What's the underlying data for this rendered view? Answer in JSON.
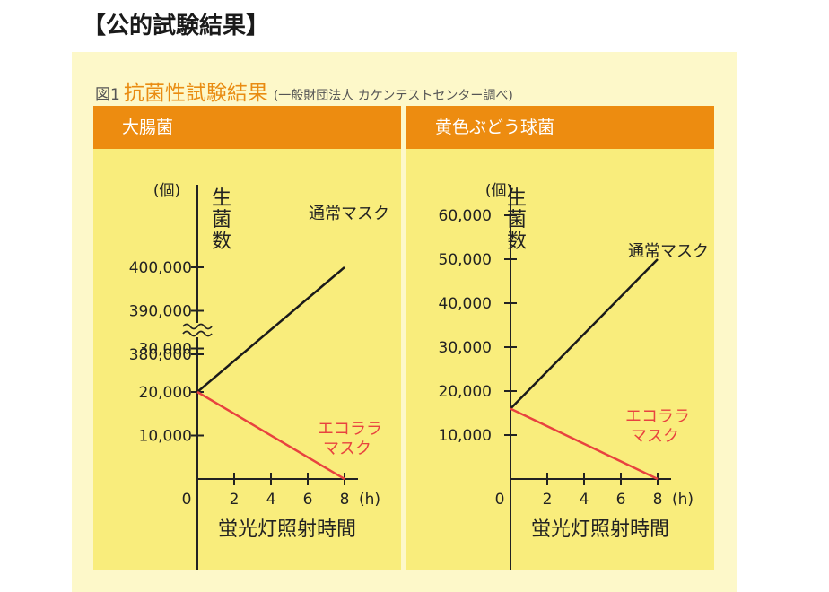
{
  "heading": "【公的試験結果】",
  "figure": {
    "number": "図1",
    "title": "抗菌性試験結果",
    "source": "(一般財団法人 カケンテストセンター調べ)"
  },
  "colors": {
    "header": "#ed8c10",
    "plot_bg": "#f9ed7c",
    "normal_line": "#1a1a1a",
    "eco_line": "#e8423f",
    "eco_text": "#e8423f"
  },
  "chart_data": [
    {
      "type": "line",
      "title": "大腸菌",
      "ylabel": "生菌数",
      "yunit": "(個)",
      "xlabel": "蛍光灯照射時間",
      "xunit": "(h)",
      "x_ticks": [
        "0",
        "2",
        "4",
        "6",
        "8"
      ],
      "y_ticks": [
        "10,000",
        "20,000",
        "30,000",
        "380,000",
        "390,000",
        "400,000"
      ],
      "y_break": true,
      "series": [
        {
          "name": "通常マスク",
          "x": [
            0,
            8
          ],
          "y": [
            20000,
            400000
          ]
        },
        {
          "name": "エコララ\nマスク",
          "x": [
            0,
            8
          ],
          "y": [
            20000,
            0
          ]
        }
      ]
    },
    {
      "type": "line",
      "title": "黄色ぶどう球菌",
      "ylabel": "生菌数",
      "yunit": "(個)",
      "xlabel": "蛍光灯照射時間",
      "xunit": "(h)",
      "x_ticks": [
        "0",
        "2",
        "4",
        "6",
        "8"
      ],
      "y_ticks": [
        "10,000",
        "20,000",
        "30,000",
        "40,000",
        "50,000",
        "60,000"
      ],
      "y_break": false,
      "series": [
        {
          "name": "通常マスク",
          "x": [
            0,
            8
          ],
          "y": [
            16000,
            50000
          ]
        },
        {
          "name": "エコララ\nマスク",
          "x": [
            0,
            8
          ],
          "y": [
            16000,
            0
          ]
        }
      ]
    }
  ]
}
